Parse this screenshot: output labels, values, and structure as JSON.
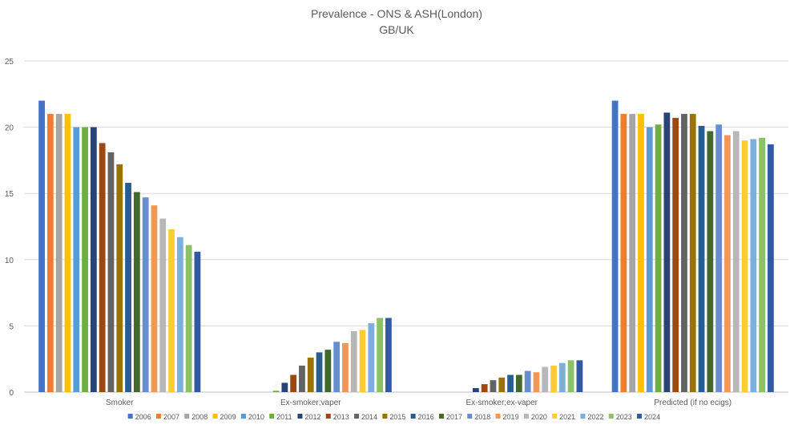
{
  "chart_data": {
    "type": "bar",
    "title": "Prevalence - ONS & ASH(London)",
    "subtitle": "GB/UK",
    "xlabel": "",
    "ylabel": "",
    "ylim": [
      0,
      25
    ],
    "yticks": [
      "0",
      "5",
      "10",
      "15",
      "20",
      "25"
    ],
    "grid": true,
    "legend_position": "bottom",
    "categories": [
      "Smoker",
      "Ex-smoker;vaper",
      "Ex-smoker;ex-vaper",
      "Predicted (if no ecigs)"
    ],
    "series": [
      {
        "name": "2006",
        "color": "#4472C4",
        "values": [
          22,
          0,
          0,
          22
        ]
      },
      {
        "name": "2007",
        "color": "#ED7D31",
        "values": [
          21,
          0,
          0,
          21
        ]
      },
      {
        "name": "2008",
        "color": "#A5A5A5",
        "values": [
          21,
          0,
          0,
          21
        ]
      },
      {
        "name": "2009",
        "color": "#FFC000",
        "values": [
          21,
          0,
          0,
          21
        ]
      },
      {
        "name": "2010",
        "color": "#5B9BD5",
        "values": [
          20,
          0,
          0,
          20
        ]
      },
      {
        "name": "2011",
        "color": "#70AD47",
        "values": [
          20,
          0.1,
          0,
          20.2
        ]
      },
      {
        "name": "2012",
        "color": "#264478",
        "values": [
          20,
          0.7,
          0.3,
          21.1
        ]
      },
      {
        "name": "2013",
        "color": "#9E480E",
        "values": [
          18.8,
          1.3,
          0.6,
          20.7
        ]
      },
      {
        "name": "2014",
        "color": "#636363",
        "values": [
          18.1,
          2.0,
          0.9,
          21
        ]
      },
      {
        "name": "2015",
        "color": "#997300",
        "values": [
          17.2,
          2.6,
          1.1,
          21
        ]
      },
      {
        "name": "2016",
        "color": "#255E91",
        "values": [
          15.8,
          3.0,
          1.3,
          20.1
        ]
      },
      {
        "name": "2017",
        "color": "#43682B",
        "values": [
          15.1,
          3.2,
          1.3,
          19.7
        ]
      },
      {
        "name": "2018",
        "color": "#698ED0",
        "values": [
          14.7,
          3.8,
          1.6,
          20.2
        ]
      },
      {
        "name": "2019",
        "color": "#F1975A",
        "values": [
          14.1,
          3.7,
          1.5,
          19.4
        ]
      },
      {
        "name": "2020",
        "color": "#B7B7B7",
        "values": [
          13.1,
          4.6,
          1.9,
          19.7
        ]
      },
      {
        "name": "2021",
        "color": "#FFCD33",
        "values": [
          12.3,
          4.7,
          2.0,
          19.0
        ]
      },
      {
        "name": "2022",
        "color": "#7CAFDD",
        "values": [
          11.7,
          5.2,
          2.2,
          19.1
        ]
      },
      {
        "name": "2023",
        "color": "#8CC168",
        "values": [
          11.1,
          5.6,
          2.4,
          19.2
        ]
      },
      {
        "name": "2024",
        "color": "#335AA1",
        "values": [
          10.6,
          5.6,
          2.4,
          18.7
        ]
      }
    ]
  }
}
